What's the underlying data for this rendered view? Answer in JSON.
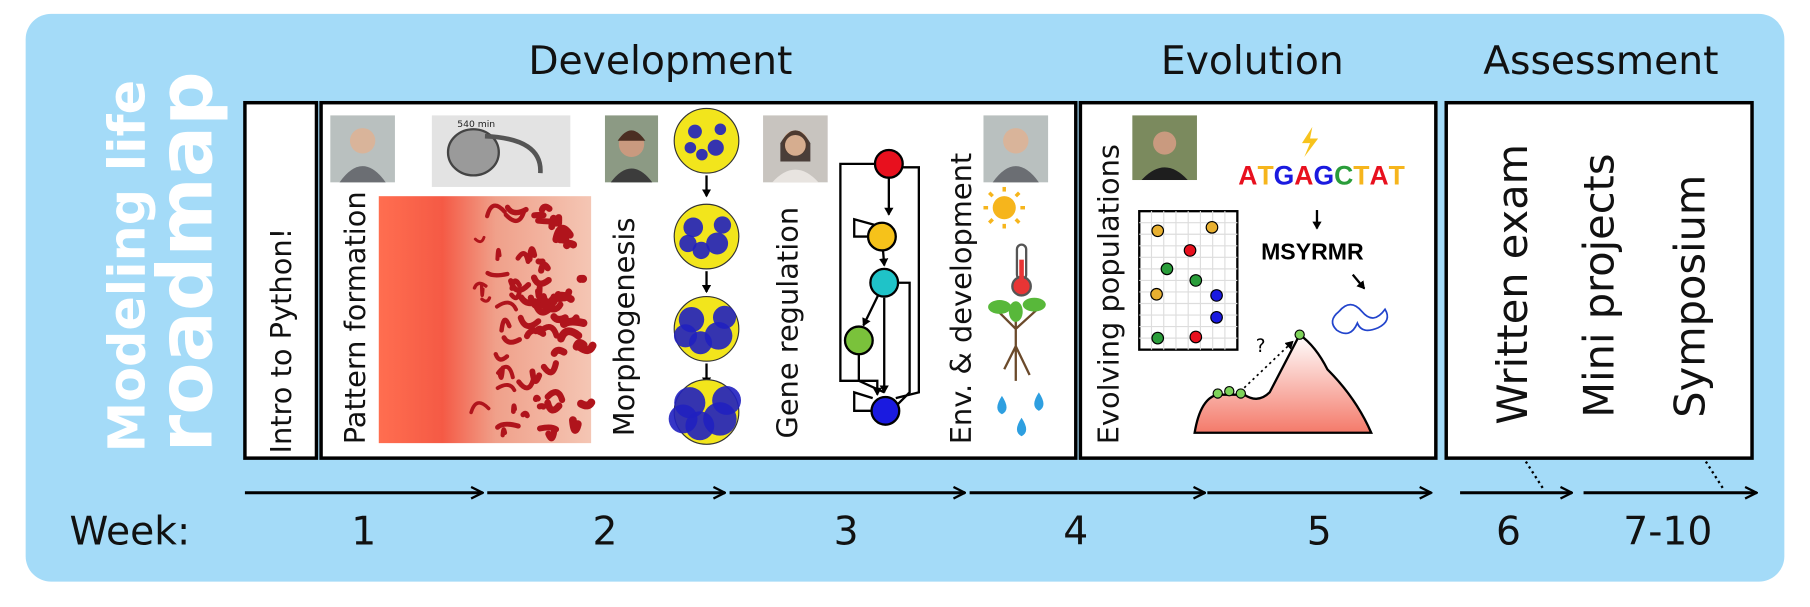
{
  "title": {
    "line1": "Modeling life",
    "line2": "roadmap"
  },
  "sections": [
    "Development",
    "Evolution",
    "Assessment"
  ],
  "topics": [
    "Intro to Python!",
    "Pattern formation",
    "Morphogenesis",
    "Gene regulation",
    "Env. & development",
    "Evolving populations",
    "Written exam",
    "Mini projects",
    "Symposium"
  ],
  "week": {
    "label": "Week:",
    "numbers": [
      "1",
      "2",
      "3",
      "4",
      "5",
      "6",
      "7-10"
    ]
  },
  "figures": {
    "embryo_time": "540 min",
    "dna": "ATGAGCTAT",
    "protein": "MSYRMR",
    "question": "?"
  }
}
